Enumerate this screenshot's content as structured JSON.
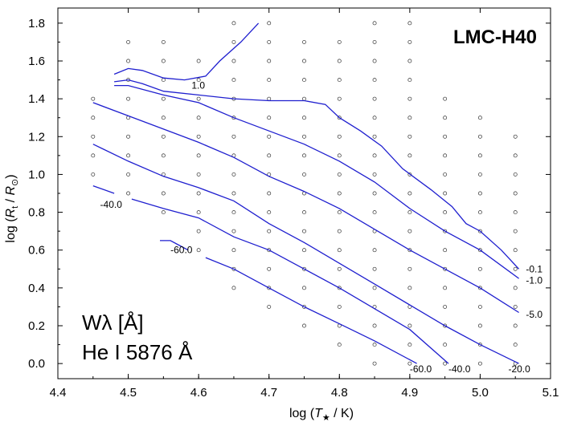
{
  "chart_data": {
    "type": "line",
    "title": "LMC-H40",
    "xlabel": "log (T★ / K)",
    "ylabel": "log (Rt / R⊙)",
    "xlim": [
      4.4,
      5.1
    ],
    "ylim": [
      -0.08,
      1.88
    ],
    "x_ticks": [
      4.4,
      4.5,
      4.6,
      4.7,
      4.8,
      4.9,
      5.0,
      5.1
    ],
    "y_ticks": [
      0.0,
      0.2,
      0.4,
      0.6,
      0.8,
      1.0,
      1.2,
      1.4,
      1.6,
      1.8
    ],
    "annotation_lines": [
      "Wλ [Å]",
      "He I 5876 Å"
    ],
    "grid": false,
    "grid_points": {
      "x": [
        4.45,
        4.5,
        4.55,
        4.6,
        4.65,
        4.7,
        4.75,
        4.8,
        4.85,
        4.9,
        4.95,
        5.0,
        5.05
      ],
      "row_ymin": [
        1.0,
        0.9,
        0.8,
        0.6,
        0.4,
        0.3,
        0.2,
        0.1,
        0.0,
        0.0,
        0.0,
        0.0,
        0.0
      ],
      "row_ymax": [
        1.4,
        1.7,
        1.7,
        1.6,
        1.8,
        1.8,
        1.7,
        1.7,
        1.8,
        1.8,
        1.4,
        1.3,
        1.2
      ],
      "step": 0.1
    },
    "series": [
      {
        "name": "1.0",
        "label_at": [
          4.59,
          1.47
        ],
        "segments": [
          [
            [
              4.48,
              1.53
            ],
            [
              4.5,
              1.56
            ],
            [
              4.52,
              1.55
            ],
            [
              4.55,
              1.51
            ],
            [
              4.58,
              1.5
            ],
            [
              4.61,
              1.52
            ],
            [
              4.63,
              1.6
            ],
            [
              4.66,
              1.7
            ],
            [
              4.685,
              1.8
            ]
          ]
        ]
      },
      {
        "name": "-0.1",
        "label_at": [
          5.065,
          0.5
        ],
        "segments": [
          [
            [
              4.48,
              1.49
            ],
            [
              4.5,
              1.5
            ],
            [
              4.52,
              1.48
            ],
            [
              4.55,
              1.44
            ],
            [
              4.6,
              1.42
            ],
            [
              4.65,
              1.4
            ],
            [
              4.7,
              1.39
            ],
            [
              4.75,
              1.39
            ],
            [
              4.78,
              1.37
            ],
            [
              4.8,
              1.3
            ],
            [
              4.83,
              1.23
            ],
            [
              4.86,
              1.15
            ],
            [
              4.89,
              1.03
            ],
            [
              4.93,
              0.92
            ],
            [
              4.96,
              0.83
            ],
            [
              4.98,
              0.74
            ],
            [
              5.0,
              0.7
            ],
            [
              5.03,
              0.6
            ],
            [
              5.055,
              0.5
            ]
          ]
        ]
      },
      {
        "name": "-1.0",
        "label_at": [
          5.065,
          0.44
        ],
        "segments": [
          [
            [
              4.48,
              1.47
            ],
            [
              4.5,
              1.47
            ],
            [
              4.55,
              1.42
            ],
            [
              4.6,
              1.38
            ],
            [
              4.65,
              1.3
            ],
            [
              4.7,
              1.23
            ],
            [
              4.75,
              1.16
            ],
            [
              4.8,
              1.07
            ],
            [
              4.85,
              0.96
            ],
            [
              4.9,
              0.82
            ],
            [
              4.95,
              0.7
            ],
            [
              5.0,
              0.6
            ],
            [
              5.055,
              0.45
            ]
          ]
        ]
      },
      {
        "name": "-5.0",
        "label_at": [
          5.065,
          0.26
        ],
        "segments": [
          [
            [
              4.45,
              1.38
            ],
            [
              4.5,
              1.31
            ],
            [
              4.55,
              1.24
            ],
            [
              4.6,
              1.17
            ],
            [
              4.65,
              1.09
            ],
            [
              4.7,
              0.99
            ],
            [
              4.75,
              0.91
            ],
            [
              4.8,
              0.82
            ],
            [
              4.85,
              0.71
            ],
            [
              4.9,
              0.6
            ],
            [
              4.95,
              0.5
            ],
            [
              5.0,
              0.4
            ],
            [
              5.055,
              0.27
            ]
          ]
        ]
      },
      {
        "name": "-20.0",
        "label_at": [
          5.04,
          -0.03
        ],
        "segments": [
          [
            [
              4.45,
              1.16
            ],
            [
              4.5,
              1.07
            ],
            [
              4.55,
              0.99
            ],
            [
              4.6,
              0.93
            ],
            [
              4.65,
              0.86
            ],
            [
              4.7,
              0.74
            ],
            [
              4.75,
              0.64
            ],
            [
              4.8,
              0.53
            ],
            [
              4.85,
              0.42
            ],
            [
              4.9,
              0.31
            ],
            [
              4.95,
              0.2
            ],
            [
              5.0,
              0.1
            ],
            [
              5.055,
              0.0
            ]
          ]
        ]
      },
      {
        "name": "-40.0",
        "label_at": [
          4.46,
          0.84
        ],
        "segments": [
          [
            [
              4.45,
              0.94
            ],
            [
              4.48,
              0.9
            ]
          ],
          [
            [
              4.505,
              0.87
            ],
            [
              4.55,
              0.82
            ],
            [
              4.6,
              0.77
            ],
            [
              4.65,
              0.67
            ],
            [
              4.7,
              0.6
            ],
            [
              4.75,
              0.5
            ],
            [
              4.8,
              0.4
            ],
            [
              4.85,
              0.29
            ],
            [
              4.9,
              0.18
            ],
            [
              4.955,
              0.0
            ]
          ]
        ]
      },
      {
        "name": "-60.0",
        "label_at": [
          4.56,
          0.6
        ],
        "segments": [
          [
            [
              4.545,
              0.65
            ],
            [
              4.56,
              0.65
            ],
            [
              4.575,
              0.62
            ],
            [
              4.585,
              0.6
            ]
          ],
          [
            [
              4.61,
              0.56
            ],
            [
              4.65,
              0.5
            ],
            [
              4.7,
              0.4
            ],
            [
              4.75,
              0.3
            ],
            [
              4.8,
              0.21
            ],
            [
              4.85,
              0.12
            ],
            [
              4.91,
              0.0
            ]
          ]
        ]
      }
    ],
    "extra_labels": [
      {
        "text": "-60.0",
        "at": [
          4.9,
          -0.03
        ]
      },
      {
        "text": "-40.0",
        "at": [
          4.955,
          -0.03
        ]
      }
    ]
  }
}
